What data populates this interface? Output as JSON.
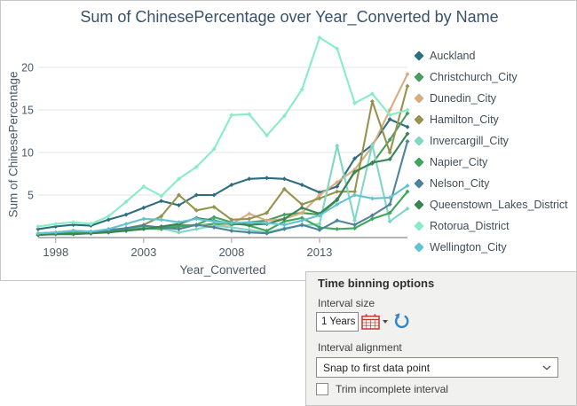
{
  "chart_data": {
    "type": "line",
    "title": "Sum of ChinesePercentage over Year_Converted by Name",
    "xlabel": "Year_Converted",
    "ylabel": "Sum of ChinesePercentage",
    "x": [
      1997,
      1998,
      1999,
      2000,
      2001,
      2002,
      2003,
      2004,
      2005,
      2006,
      2007,
      2008,
      2009,
      2010,
      2011,
      2012,
      2013,
      2014,
      2015,
      2016,
      2017,
      2018
    ],
    "x_ticks": [
      1998,
      2003,
      2008,
      2013
    ],
    "y_ticks": [
      5,
      10,
      15,
      20
    ],
    "xlim": [
      1997,
      2018
    ],
    "ylim": [
      0,
      23.6
    ],
    "grid": "horizontal",
    "legend_position": "right",
    "marker": "diamond",
    "series": [
      {
        "name": "Auckland",
        "color": "#2e6e7e",
        "values": [
          1.0,
          1.3,
          1.5,
          1.4,
          2.1,
          2.7,
          3.5,
          4.3,
          3.8,
          5.0,
          5.0,
          6.2,
          6.9,
          7.0,
          6.9,
          6.2,
          5.3,
          6.0,
          9.3,
          10.9,
          13.9,
          13.0
        ]
      },
      {
        "name": "Christchurch_City",
        "color": "#4b9c63",
        "values": [
          0.4,
          0.5,
          0.6,
          0.5,
          0.8,
          1.0,
          1.3,
          1.2,
          1.5,
          1.4,
          1.6,
          1.5,
          1.8,
          2.0,
          2.7,
          2.9,
          2.7,
          4.4,
          7.8,
          8.7,
          11.5,
          14.6
        ]
      },
      {
        "name": "Dunedin_City",
        "color": "#d9ad82",
        "values": [
          0.4,
          0.5,
          0.6,
          0.5,
          0.7,
          1.0,
          1.2,
          1.0,
          1.3,
          1.5,
          1.3,
          1.6,
          2.8,
          2.0,
          2.2,
          2.9,
          5.0,
          6.5,
          8.0,
          10.7,
          15.0,
          19.2
        ]
      },
      {
        "name": "Hamilton_City",
        "color": "#95934e",
        "values": [
          0.4,
          0.4,
          0.5,
          0.6,
          0.8,
          1.1,
          1.5,
          2.5,
          5.0,
          3.2,
          3.6,
          2.1,
          2.2,
          2.9,
          5.7,
          3.9,
          4.6,
          5.4,
          5.4,
          16.0,
          10.0,
          17.8
        ]
      },
      {
        "name": "Invercargill_City",
        "color": "#7fd7c4",
        "values": [
          0.4,
          0.5,
          0.6,
          0.5,
          0.7,
          0.9,
          1.3,
          1.1,
          0.6,
          1.0,
          1.4,
          1.2,
          0.9,
          0.6,
          1.1,
          1.4,
          1.6,
          10.8,
          2.0,
          10.9,
          1.9,
          3.4
        ]
      },
      {
        "name": "Napier_City",
        "color": "#3fa75d",
        "values": [
          0.3,
          0.5,
          0.6,
          0.5,
          0.7,
          0.9,
          1.1,
          1.0,
          1.3,
          1.5,
          2.4,
          1.8,
          1.4,
          0.8,
          1.9,
          2.3,
          1.2,
          1.0,
          1.1,
          2.2,
          2.9,
          5.4
        ]
      },
      {
        "name": "Nelson_City",
        "color": "#4f8399",
        "values": [
          0.5,
          0.6,
          0.8,
          0.7,
          0.9,
          1.1,
          1.4,
          1.2,
          1.0,
          1.5,
          1.2,
          0.8,
          0.6,
          0.5,
          1.0,
          1.5,
          0.9,
          2.0,
          1.5,
          2.6,
          3.9,
          11.3
        ]
      },
      {
        "name": "Queenstown_Lakes_District",
        "color": "#3a8352",
        "values": [
          0.3,
          0.4,
          0.4,
          0.5,
          0.6,
          0.8,
          1.0,
          1.3,
          1.6,
          2.3,
          2.0,
          1.6,
          1.5,
          1.6,
          2.2,
          3.5,
          2.8,
          4.5,
          7.7,
          8.8,
          9.2,
          12.2
        ]
      },
      {
        "name": "Rotorua_District",
        "color": "#87edc6",
        "values": [
          1.3,
          1.6,
          1.8,
          1.6,
          2.5,
          4.2,
          6.0,
          4.9,
          6.9,
          8.3,
          10.4,
          14.4,
          14.5,
          12.0,
          14.3,
          17.4,
          23.5,
          22.2,
          15.8,
          16.9,
          14.4,
          15.0
        ]
      },
      {
        "name": "Wellington_City",
        "color": "#64c3d3",
        "values": [
          0.5,
          0.6,
          0.8,
          0.7,
          1.0,
          1.6,
          2.2,
          2.1,
          1.8,
          2.2,
          1.9,
          1.7,
          1.8,
          1.7,
          1.5,
          2.0,
          2.6,
          3.9,
          5.0,
          4.6,
          4.7,
          6.1
        ]
      }
    ]
  },
  "binning_panel": {
    "title": "Time binning options",
    "interval_size_label": "Interval size",
    "interval_size_value": "1 Years",
    "interval_alignment_label": "Interval alignment",
    "interval_alignment_value": "Snap to first data point",
    "trim_checkbox_label": "Trim incomplete interval",
    "trim_checkbox_checked": false
  },
  "icons": {
    "calendar_icon": "calendar-icon",
    "reset_icon": "undo-icon",
    "dropdown_chevron": "chevron-down-icon"
  },
  "colors": {
    "chart_title": "#375269",
    "axis_text": "#4a5a68",
    "gridline": "#e6e6e6",
    "axis_line": "#b6b6b6",
    "panel_bg": "#f1f1ef",
    "calendar_icon_red": "#c2392b",
    "reset_icon_blue": "#2f86c9"
  }
}
